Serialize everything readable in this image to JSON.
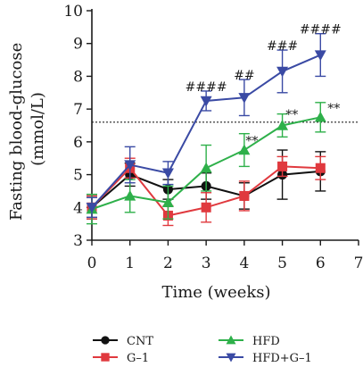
{
  "chart_data": {
    "type": "line",
    "xlabel": "Time (weeks)",
    "ylabel_line1": "Fasting blood-glucose",
    "ylabel_line2": "(mmol/L)",
    "xlim": [
      0,
      7
    ],
    "ylim": [
      3,
      10
    ],
    "xticks": [
      0,
      1,
      2,
      3,
      4,
      5,
      6,
      7
    ],
    "yticks": [
      3,
      4,
      5,
      6,
      7,
      8,
      9,
      10
    ],
    "grid": false,
    "legend_position": "bottom",
    "reference_line": {
      "y": 6.6,
      "style": "dotted"
    },
    "series": [
      {
        "name": "CNT",
        "color": "#111111",
        "marker": "circle",
        "x": [
          0,
          1,
          2,
          3,
          4,
          5,
          6
        ],
        "y": [
          4.0,
          5.0,
          4.55,
          4.65,
          4.35,
          5.0,
          5.1
        ],
        "err": [
          0.35,
          0.35,
          0.3,
          0.4,
          0.4,
          0.75,
          0.6
        ]
      },
      {
        "name": "G–1",
        "color": "#e0393e",
        "marker": "square",
        "x": [
          0,
          1,
          2,
          3,
          4,
          5,
          6
        ],
        "y": [
          4.0,
          5.2,
          3.75,
          4.0,
          4.35,
          5.25,
          5.2
        ],
        "err": [
          0.35,
          0.3,
          0.3,
          0.45,
          0.45,
          0.3,
          0.35
        ]
      },
      {
        "name": "HFD",
        "color": "#2eb04a",
        "marker": "triangle-up",
        "x": [
          0,
          1,
          2,
          3,
          4,
          5,
          6
        ],
        "y": [
          3.95,
          4.35,
          4.15,
          5.2,
          5.75,
          6.5,
          6.75
        ],
        "err": [
          0.45,
          0.5,
          0.5,
          0.7,
          0.5,
          0.35,
          0.45
        ]
      },
      {
        "name": "HFD+G–1",
        "color": "#3a4aa4",
        "marker": "triangle-down",
        "x": [
          0,
          1,
          2,
          3,
          4,
          5,
          6
        ],
        "y": [
          4.0,
          5.3,
          5.05,
          7.25,
          7.35,
          8.15,
          8.65
        ],
        "err": [
          0.3,
          0.55,
          0.35,
          0.3,
          0.55,
          0.65,
          0.65
        ]
      }
    ],
    "annotations": [
      {
        "x": 3,
        "y": 7.55,
        "text": "####",
        "color": "#1a1a1a"
      },
      {
        "x": 4,
        "y": 7.9,
        "text": "##",
        "color": "#1a1a1a"
      },
      {
        "x": 5,
        "y": 8.8,
        "text": "###",
        "color": "#1a1a1a"
      },
      {
        "x": 6,
        "y": 9.3,
        "text": "####",
        "color": "#1a1a1a"
      },
      {
        "x": 4.2,
        "y": 5.9,
        "text": "**",
        "color": "#1a1a1a"
      },
      {
        "x": 5.25,
        "y": 6.7,
        "text": "**",
        "color": "#1a1a1a"
      },
      {
        "x": 6.35,
        "y": 6.9,
        "text": "**",
        "color": "#1a1a1a"
      }
    ]
  }
}
